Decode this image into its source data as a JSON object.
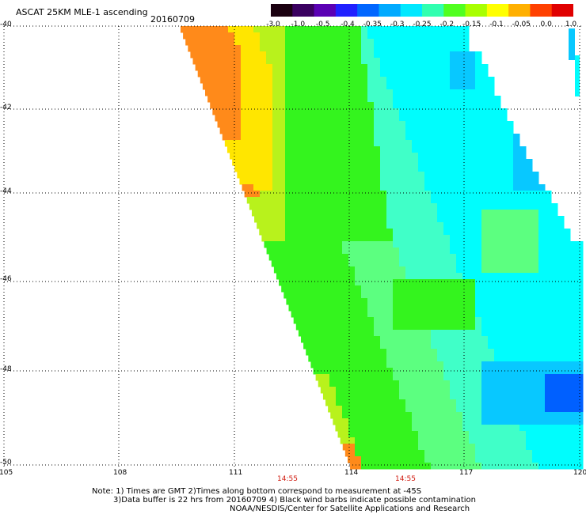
{
  "header": {
    "title": "ASCAT 25KM MLE-1 ascending",
    "date": "20160709"
  },
  "colorbar": {
    "labels": [
      "-3.0",
      "-1.0",
      "-0.5",
      "-0.4",
      "-0.35",
      "-0.3",
      "-0.25",
      "-0.2",
      "-0.15",
      "-0.1",
      "-0.05",
      "0.0",
      "1.0"
    ],
    "colors": [
      "#1a0010",
      "#3a0060",
      "#5a00b4",
      "#2020ff",
      "#0066ff",
      "#00aaff",
      "#00e8ff",
      "#30ffb0",
      "#50ff20",
      "#a8ff00",
      "#ffff00",
      "#ffb000",
      "#ff4000",
      "#e00000"
    ]
  },
  "axes": {
    "x_ticks": [
      "105",
      "108",
      "111",
      "114",
      "117",
      "120"
    ],
    "y_ticks": [
      "-40",
      "-42",
      "-44",
      "-46",
      "-48",
      "-50"
    ]
  },
  "pass_times": [
    "14:55",
    "14:55"
  ],
  "notes": {
    "line1": "Note: 1) Times are GMT 2)Times along bottom correspond to measurement at -45S",
    "line2": "3)Data buffer is 22 hrs from 20160709 4) Black wind barbs indicate possible contamination",
    "line3": "NOAA/NESDIS/Center for Satellite Applications and Research"
  },
  "colors": {
    "orange": "#ff8a1a",
    "yellow": "#ffe600",
    "yellow_green": "#b8f21c",
    "green": "#34f41e",
    "light_green": "#5cff80",
    "aqua_green": "#40ffc8",
    "cyan": "#00fdfd",
    "sky_blue": "#08c8ff",
    "blue": "#0060ff"
  }
}
